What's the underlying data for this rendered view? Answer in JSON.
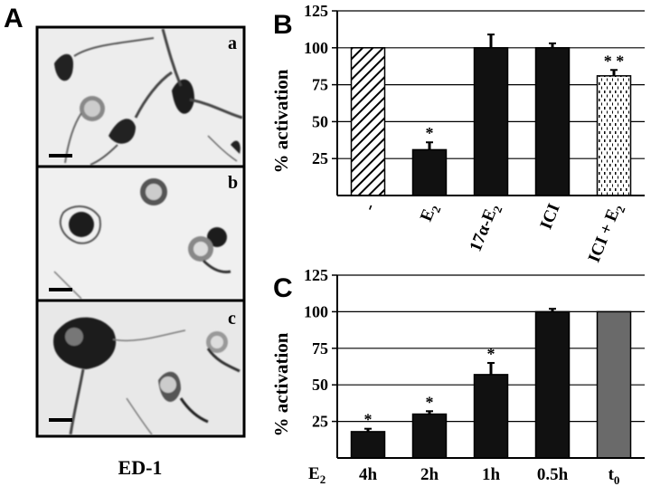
{
  "panels": {
    "A": {
      "letter": "A",
      "caption": "ED-1",
      "images": [
        {
          "letter": "a",
          "description_icon": "micrograph-ramified-cells"
        },
        {
          "letter": "b",
          "description_icon": "micrograph-amoeboid-cells"
        },
        {
          "letter": "c",
          "description_icon": "micrograph-activated-cells"
        }
      ]
    },
    "B": {
      "letter": "B"
    },
    "C": {
      "letter": "C",
      "row_label": "E2",
      "row_label_main": "E",
      "row_label_sub": "2"
    }
  },
  "chart_data": [
    {
      "type": "bar",
      "panel": "B",
      "ylabel": "% activation",
      "ylim": [
        0,
        125
      ],
      "yticks": [
        "25",
        "50",
        "75",
        "100",
        "125"
      ],
      "grid": true,
      "categories": [
        {
          "main": "-",
          "sub": ""
        },
        {
          "main": "E",
          "sub": "2"
        },
        {
          "main": "17α-E",
          "sub": "2"
        },
        {
          "main": "ICI",
          "sub": ""
        },
        {
          "main": "ICI + E",
          "sub": "2"
        }
      ],
      "values": [
        100,
        31,
        100,
        100,
        81
      ],
      "errors": [
        0,
        5,
        9,
        3,
        4
      ],
      "significance": [
        "",
        "*",
        "",
        "",
        "* *"
      ],
      "fills": [
        "hatched",
        "black",
        "black",
        "black",
        "dotted"
      ]
    },
    {
      "type": "bar",
      "panel": "C",
      "ylabel": "% activation",
      "ylim": [
        0,
        125
      ],
      "yticks": [
        "25",
        "50",
        "75",
        "100",
        "125"
      ],
      "grid": true,
      "categories": [
        {
          "main": "4h",
          "sub": ""
        },
        {
          "main": "2h",
          "sub": ""
        },
        {
          "main": "1h",
          "sub": ""
        },
        {
          "main": "0.5h",
          "sub": ""
        },
        {
          "main": "t",
          "sub": "0"
        }
      ],
      "values": [
        18,
        30,
        57,
        100,
        100
      ],
      "errors": [
        2,
        2,
        8,
        2,
        0
      ],
      "significance": [
        "*",
        "*",
        "*",
        "",
        ""
      ],
      "fills": [
        "black",
        "black",
        "black",
        "black",
        "gray"
      ]
    }
  ],
  "colors": {
    "black": "#111111",
    "gray": "#6a6a6a",
    "grid": "#000000",
    "background": "#ffffff"
  }
}
